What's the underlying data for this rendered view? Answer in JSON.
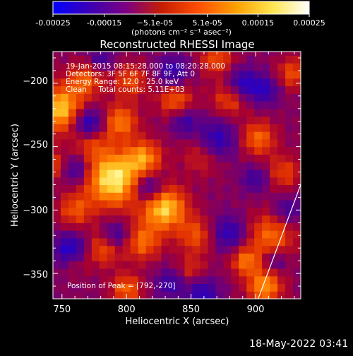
{
  "chart_data": {
    "type": "heatmap",
    "title": "Reconstructed RHESSI Image",
    "xlabel": "Heliocentric X (arcsec)",
    "ylabel": "Heliocentric Y (arcsec)",
    "xlim": [
      743,
      935
    ],
    "ylim": [
      -370,
      -175
    ],
    "x_ticks": [
      750,
      800,
      850,
      900
    ],
    "y_ticks": [
      -200,
      -250,
      -300,
      -350
    ],
    "x_tick_labels": [
      "750",
      "800",
      "850",
      "900"
    ],
    "y_tick_labels": [
      "−200",
      "−250",
      "−300",
      "−350"
    ],
    "colorbar": {
      "range": [
        -0.00025,
        0.00025
      ],
      "ticks": [
        -0.00025,
        -0.00015,
        -5.1e-05,
        5.1e-05,
        0.00015,
        0.00025
      ],
      "tick_labels": [
        "-0.00025",
        "-0.00015",
        "−5.1e-05",
        "5.1e-05",
        "0.00015",
        "0.00025"
      ],
      "unit_label": "(photons cm⁻² s⁻¹ asec⁻²)",
      "colors": [
        "#0000ff",
        "#3c00b4",
        "#7d0082",
        "#c81e00",
        "#ff5000",
        "#ffa000",
        "#ffe650",
        "#ffffff"
      ]
    },
    "info_lines": [
      "19-Jan-2015 08:15:28.000 to 08:20:28.000",
      "Detectors: 3F 5F 6F 7F 8F 9F, Att 0",
      "Energy Range: 12.0 - 25.0 keV",
      "Clean     Total counts: 5.11E+03"
    ],
    "peak_label": "Position of Peak = [792,-270]",
    "peak_position": [
      792,
      -270
    ],
    "limb_line": [
      [
        902,
        -370
      ],
      [
        935,
        -280
      ]
    ],
    "blobs": [
      [
        790,
        -275,
        4.8,
        1.0
      ],
      [
        829,
        -298,
        3.8,
        0.9
      ],
      [
        812,
        -325,
        3.2,
        0.55
      ],
      [
        800,
        -362,
        2.6,
        0.55
      ],
      [
        907,
        -360,
        3.0,
        0.7
      ],
      [
        912,
        -320,
        4.0,
        0.55
      ],
      [
        748,
        -220,
        4.0,
        0.85
      ],
      [
        814,
        -258,
        3.0,
        0.6
      ],
      [
        854,
        -320,
        3.2,
        0.45
      ],
      [
        860,
        -255,
        3.5,
        0.4
      ],
      [
        892,
        -340,
        2.5,
        0.55
      ],
      [
        760,
        -300,
        3.0,
        0.45
      ],
      [
        773,
        -245,
        3.0,
        0.4
      ],
      [
        902,
        -243,
        3.0,
        0.55
      ],
      [
        768,
        -197,
        3.0,
        0.5
      ],
      [
        838,
        -213,
        3.0,
        0.5
      ],
      [
        880,
        -212,
        3.0,
        0.45
      ],
      [
        803,
        -198,
        3.0,
        0.45
      ],
      [
        870,
        -180,
        3.0,
        0.45
      ],
      [
        922,
        -270,
        3.0,
        0.4
      ],
      [
        929,
        -192,
        2.8,
        0.45
      ],
      [
        782,
        -330,
        3.0,
        0.5
      ],
      [
        850,
        -347,
        2.5,
        0.3
      ],
      [
        760,
        -340,
        2.4,
        0.35
      ],
      [
        795,
        -230,
        3.0,
        0.6
      ],
      [
        745,
        -265,
        2.5,
        0.4
      ],
      [
        771,
        -232,
        2.6,
        -0.75
      ],
      [
        817,
        -283,
        2.6,
        -0.6
      ],
      [
        757,
        -332,
        2.8,
        -0.75
      ],
      [
        836,
        -190,
        2.6,
        -0.5
      ],
      [
        869,
        -245,
        3.3,
        -0.65
      ],
      [
        879,
        -318,
        2.8,
        -0.55
      ],
      [
        890,
        -200,
        2.6,
        -0.6
      ],
      [
        907,
        -205,
        2.4,
        -0.5
      ],
      [
        859,
        -366,
        2.6,
        -0.55
      ],
      [
        792,
        -320,
        2.4,
        -0.5
      ],
      [
        834,
        -358,
        2.4,
        -0.45
      ],
      [
        760,
        -268,
        2.4,
        -0.5
      ],
      [
        845,
        -230,
        2.2,
        -0.45
      ],
      [
        925,
        -300,
        2.4,
        -0.4
      ],
      [
        900,
        -275,
        2.2,
        -0.4
      ],
      [
        780,
        -180,
        2.0,
        -0.4
      ],
      [
        915,
        -340,
        2.0,
        -0.35
      ]
    ]
  },
  "footer_date": "18-May-2022 03:41"
}
